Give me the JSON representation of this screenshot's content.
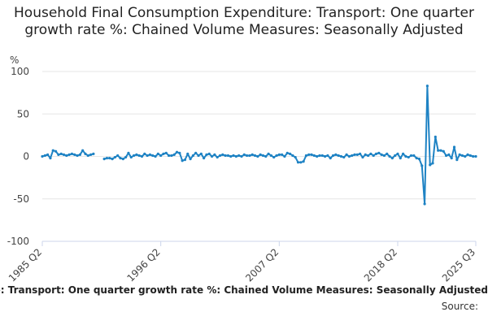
{
  "chart_data": {
    "type": "line",
    "title": "Household Final Consumption Expenditure: Transport: One quarter growth rate %: Chained Volume Measures: Seasonally Adjusted",
    "ylabel": "%",
    "ylim": [
      -100,
      100
    ],
    "yticks": [
      "100",
      "50",
      "0",
      "-50",
      "-100"
    ],
    "xlim": [
      "1985 Q2",
      "2025 Q3"
    ],
    "xticks": [
      "1985 Q2",
      "1996 Q2",
      "2007 Q2",
      "2018 Q2",
      "2025 Q3"
    ],
    "grid": true,
    "legend_position": "bottom",
    "series": [
      {
        "name": "Household Final Consumption Expenditure: Transport: One quarter growth rate %: Chained Volume Measures: Seasonally Adjusted",
        "color": "#1f83c4",
        "x": [
          "1985 Q2",
          "1985 Q3",
          "1985 Q4",
          "1986 Q1",
          "1986 Q2",
          "1986 Q3",
          "1986 Q4",
          "1987 Q1",
          "1987 Q2",
          "1987 Q3",
          "1987 Q4",
          "1988 Q1",
          "1988 Q2",
          "1988 Q3",
          "1988 Q4",
          "1989 Q1",
          "1989 Q2",
          "1989 Q3",
          "1989 Q4",
          "1990 Q1",
          "1991 Q1",
          "1991 Q2",
          "1991 Q3",
          "1991 Q4",
          "1992 Q1",
          "1992 Q2",
          "1992 Q3",
          "1992 Q4",
          "1993 Q1",
          "1993 Q2",
          "1993 Q3",
          "1993 Q4",
          "1994 Q1",
          "1994 Q2",
          "1994 Q3",
          "1994 Q4",
          "1995 Q1",
          "1995 Q2",
          "1995 Q3",
          "1995 Q4",
          "1996 Q1",
          "1996 Q2",
          "1996 Q3",
          "1996 Q4",
          "1997 Q1",
          "1997 Q2",
          "1997 Q3",
          "1997 Q4",
          "1998 Q1",
          "1998 Q2",
          "1998 Q3",
          "1998 Q4",
          "1999 Q1",
          "1999 Q2",
          "1999 Q3",
          "1999 Q4",
          "2000 Q1",
          "2000 Q2",
          "2000 Q3",
          "2000 Q4",
          "2001 Q1",
          "2001 Q2",
          "2001 Q3",
          "2001 Q4",
          "2002 Q1",
          "2002 Q2",
          "2002 Q3",
          "2002 Q4",
          "2003 Q1",
          "2003 Q2",
          "2003 Q3",
          "2003 Q4",
          "2004 Q1",
          "2004 Q2",
          "2004 Q3",
          "2004 Q4",
          "2005 Q1",
          "2005 Q2",
          "2005 Q3",
          "2005 Q4",
          "2006 Q1",
          "2006 Q2",
          "2006 Q3",
          "2006 Q4",
          "2007 Q1",
          "2007 Q2",
          "2007 Q3",
          "2007 Q4",
          "2008 Q1",
          "2008 Q2",
          "2008 Q3",
          "2008 Q4",
          "2009 Q1",
          "2009 Q2",
          "2009 Q3",
          "2009 Q4",
          "2010 Q1",
          "2010 Q2",
          "2010 Q3",
          "2010 Q4",
          "2011 Q1",
          "2011 Q2",
          "2011 Q3",
          "2011 Q4",
          "2012 Q1",
          "2012 Q2",
          "2012 Q3",
          "2012 Q4",
          "2013 Q1",
          "2013 Q2",
          "2013 Q3",
          "2013 Q4",
          "2014 Q1",
          "2014 Q2",
          "2014 Q3",
          "2014 Q4",
          "2015 Q1",
          "2015 Q2",
          "2015 Q3",
          "2015 Q4",
          "2016 Q1",
          "2016 Q2",
          "2016 Q3",
          "2016 Q4",
          "2017 Q1",
          "2017 Q2",
          "2017 Q3",
          "2017 Q4",
          "2018 Q1",
          "2018 Q2",
          "2018 Q3",
          "2018 Q4",
          "2019 Q1",
          "2019 Q2",
          "2019 Q3",
          "2019 Q4",
          "2020 Q1",
          "2020 Q2",
          "2020 Q3",
          "2020 Q4",
          "2021 Q1",
          "2021 Q2",
          "2021 Q3",
          "2021 Q4",
          "2022 Q1",
          "2022 Q2",
          "2022 Q3",
          "2022 Q4",
          "2023 Q1",
          "2023 Q2",
          "2023 Q3",
          "2023 Q4",
          "2024 Q1",
          "2024 Q2",
          "2024 Q3",
          "2024 Q4",
          "2025 Q1",
          "2025 Q2",
          "2025 Q3"
        ],
        "values": [
          0,
          1,
          2,
          -2,
          7,
          6,
          2,
          3,
          2,
          1,
          2,
          3,
          2,
          1,
          2,
          7,
          3,
          1,
          2,
          3,
          -3,
          -2,
          -2,
          -3,
          -1,
          1,
          -2,
          -3,
          -1,
          4,
          -1,
          1,
          2,
          1,
          0,
          3,
          1,
          2,
          1,
          0,
          3,
          1,
          3,
          4,
          1,
          1,
          2,
          5,
          4,
          -5,
          -4,
          3,
          -3,
          1,
          4,
          1,
          3,
          -2,
          2,
          3,
          0,
          2,
          -1,
          1,
          2,
          1,
          1,
          0,
          1,
          0,
          1,
          0,
          2,
          1,
          1,
          2,
          1,
          0,
          2,
          1,
          0,
          3,
          1,
          -1,
          1,
          2,
          2,
          0,
          4,
          3,
          1,
          -1,
          -7,
          -7,
          -6,
          1,
          2,
          2,
          1,
          0,
          1,
          1,
          0,
          1,
          -2,
          1,
          2,
          1,
          0,
          -1,
          2,
          0,
          1,
          2,
          2,
          3,
          -1,
          2,
          1,
          3,
          1,
          3,
          4,
          2,
          1,
          3,
          0,
          -2,
          1,
          3,
          -2,
          3,
          0,
          -1,
          1,
          1,
          -2,
          -3,
          -11,
          -56,
          83,
          -10,
          -8,
          23,
          7,
          7,
          6,
          1,
          2,
          -2,
          11,
          -4,
          2,
          1,
          0,
          2,
          1,
          0,
          0
        ]
      }
    ]
  },
  "legend_text": "Household Final Consumption Expenditure: Transport: One quarter growth rate %: Chained Volume Measures: Seasonally Adjusted",
  "source_text": "Source:"
}
